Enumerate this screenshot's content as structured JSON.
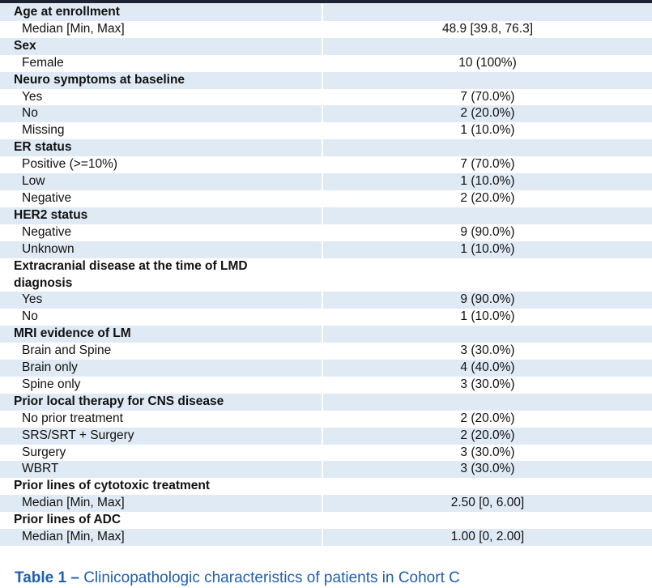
{
  "table": {
    "groups": [
      {
        "label": "Age at enrollment",
        "rows": [
          {
            "label": "Median [Min, Max]",
            "value": "48.9 [39.8, 76.3]"
          }
        ]
      },
      {
        "label": "Sex",
        "rows": [
          {
            "label": "Female",
            "value": "10 (100%)"
          }
        ]
      },
      {
        "label": "Neuro symptoms at baseline",
        "rows": [
          {
            "label": "Yes",
            "value": "7 (70.0%)"
          },
          {
            "label": "No",
            "value": "2 (20.0%)"
          },
          {
            "label": "Missing",
            "value": "1 (10.0%)"
          }
        ]
      },
      {
        "label": "ER status",
        "rows": [
          {
            "label": "Positive (>=10%)",
            "value": "7 (70.0%)"
          },
          {
            "label": "Low",
            "value": "1 (10.0%)"
          },
          {
            "label": "Negative",
            "value": "2 (20.0%)"
          }
        ]
      },
      {
        "label": "HER2 status",
        "rows": [
          {
            "label": "Negative",
            "value": "9 (90.0%)"
          },
          {
            "label": "Unknown",
            "value": "1 (10.0%)"
          }
        ]
      },
      {
        "label": "Extracranial disease at the time of LMD diagnosis",
        "rows": [
          {
            "label": "Yes",
            "value": "9 (90.0%)"
          },
          {
            "label": "No",
            "value": "1 (10.0%)"
          }
        ]
      },
      {
        "label": "MRI evidence of LM",
        "rows": [
          {
            "label": "Brain and Spine",
            "value": "3 (30.0%)"
          },
          {
            "label": "Brain only",
            "value": "4 (40.0%)"
          },
          {
            "label": "Spine only",
            "value": "3 (30.0%)"
          }
        ]
      },
      {
        "label": "Prior local therapy for CNS disease",
        "rows": [
          {
            "label": "No prior treatment",
            "value": "2 (20.0%)"
          },
          {
            "label": "SRS/SRT + Surgery",
            "value": "2 (20.0%)"
          },
          {
            "label": "Surgery",
            "value": "3 (30.0%)"
          },
          {
            "label": "WBRT",
            "value": "3 (30.0%)"
          }
        ]
      },
      {
        "label": "Prior lines of cytotoxic treatment",
        "rows": [
          {
            "label": "Median [Min, Max]",
            "value": "2.50 [0, 6.00]"
          }
        ]
      },
      {
        "label": "Prior lines of ADC",
        "rows": [
          {
            "label": "Median [Min, Max]",
            "value": "1.00 [0, 2.00]"
          }
        ]
      }
    ]
  },
  "caption": {
    "label": "Table 1 –",
    "text": "Clinicopathologic characteristics of patients in Cohort C"
  }
}
